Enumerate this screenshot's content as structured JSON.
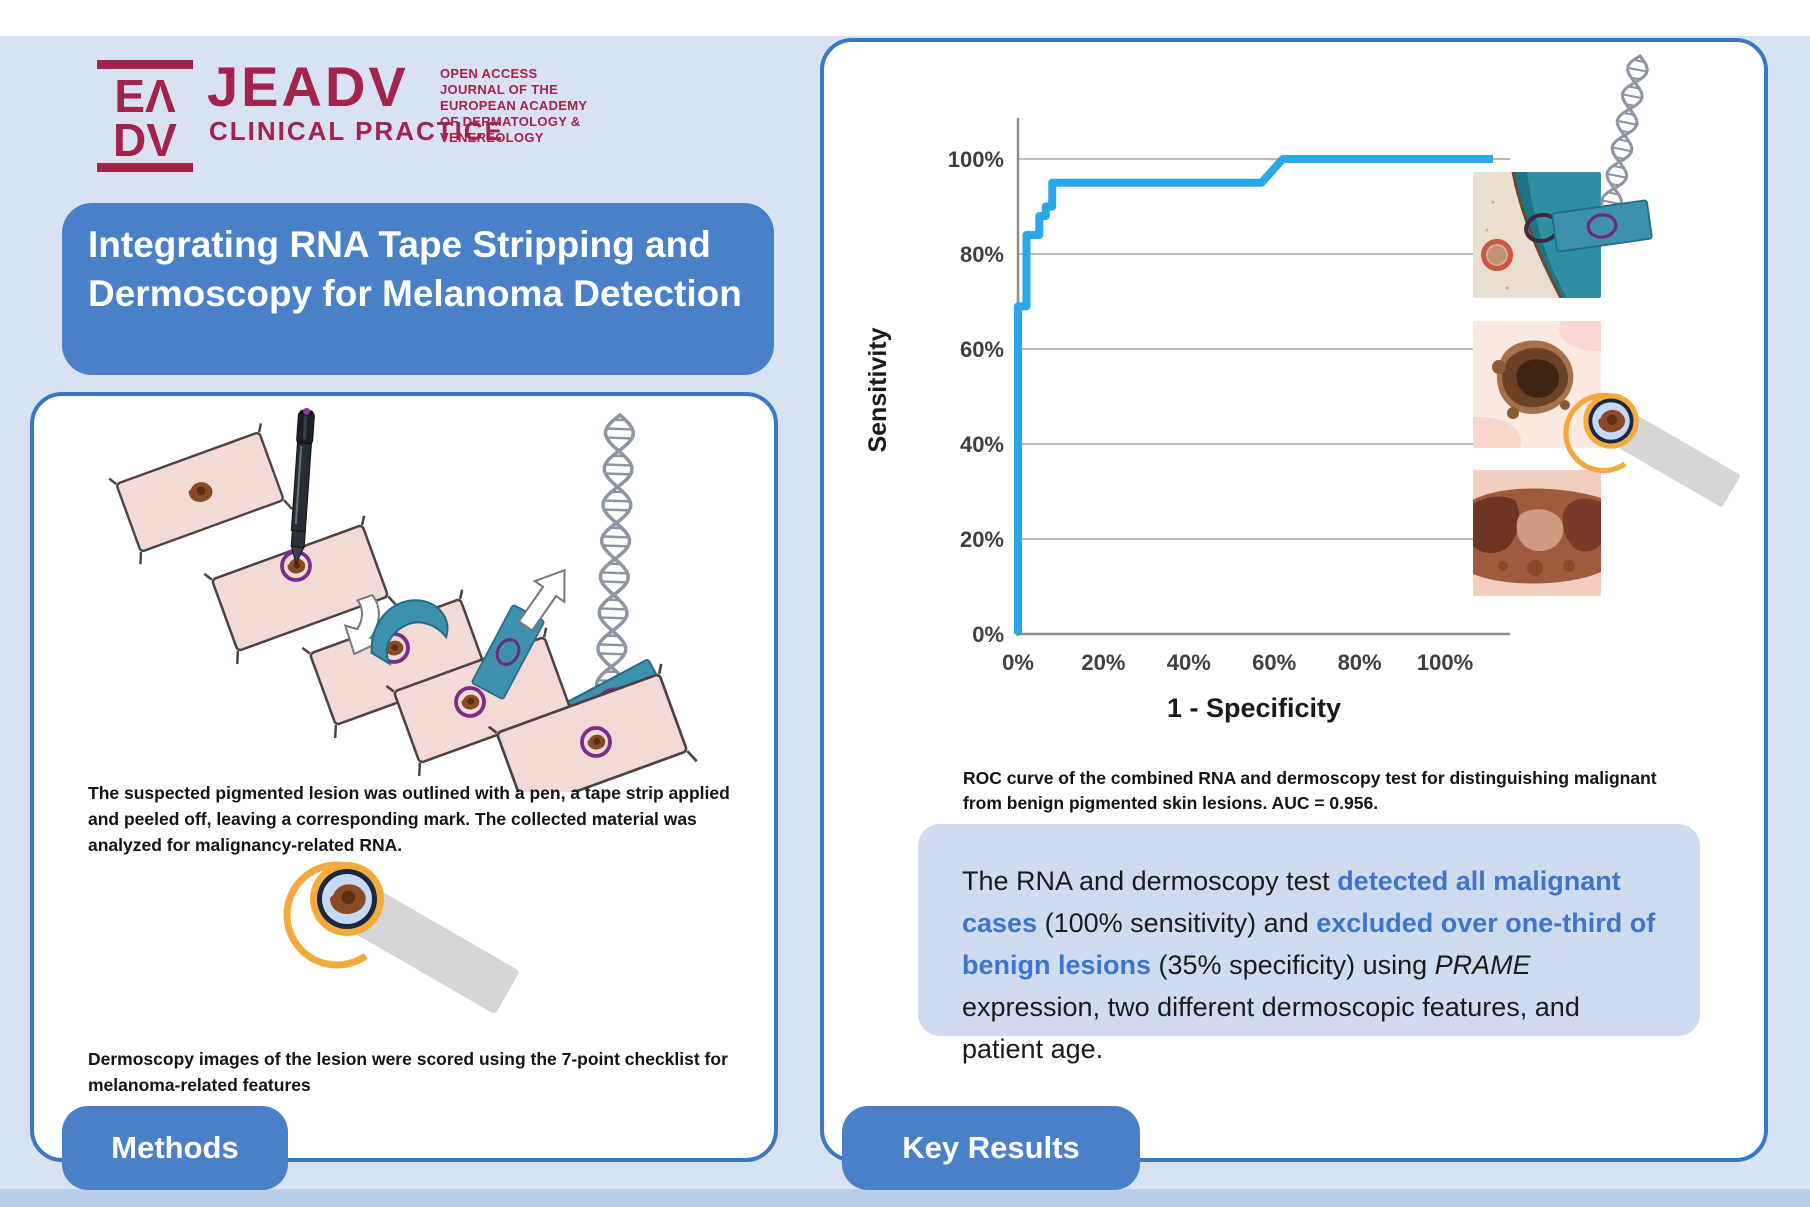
{
  "page": {
    "background": "#d8e2f2",
    "panel_border": "#3a78c4",
    "accent_blue": "#4a80c8",
    "brand_color": "#a2234c"
  },
  "header": {
    "logo": {
      "mark_line1": "EΛ",
      "mark_line2": "DV",
      "journal_name": "JEADV",
      "journal_subtitle": "CLINICAL PRACTICE",
      "tagline": "OPEN ACCESS\nJOURNAL OF THE\nEUROPEAN ACADEMY\nOF DERMATOLOGY &\nVENEREOLOGY"
    },
    "title": "Integrating RNA Tape Stripping and Dermoscopy for Melanoma Detection"
  },
  "methods_panel": {
    "label": "Methods",
    "caption1": "The suspected pigmented lesion was outlined with a pen, a tape strip applied and peeled off, leaving a corresponding mark. The collected material was analyzed for malignancy-related RNA.",
    "caption2": "Dermoscopy images of the lesion were scored using the 7-point checklist for melanoma-related features"
  },
  "results_panel": {
    "label": "Key Results",
    "figure_caption": "ROC curve of the combined RNA and dermoscopy test for distinguishing malignant from benign pigmented skin lesions. AUC = 0.956.",
    "summary_segments": [
      {
        "text": "The RNA and dermoscopy test ",
        "style": "normal"
      },
      {
        "text": "detected all malignant cases",
        "style": "blue"
      },
      {
        "text": " (100% sensitivity) and ",
        "style": "normal"
      },
      {
        "text": "excluded over one-third of benign lesions",
        "style": "blue"
      },
      {
        "text": " (35% specificity) using ",
        "style": "normal"
      },
      {
        "text": "PRAME",
        "style": "italic"
      },
      {
        "text": " expression, two different dermoscopic features, and patient age.",
        "style": "normal"
      }
    ]
  },
  "chart_data": {
    "type": "line",
    "title": "ROC curve of combined RNA and dermoscopy test",
    "xlabel": "1 - Specificity",
    "ylabel": "Sensitivity",
    "x_ticks": [
      "0%",
      "20%",
      "40%",
      "60%",
      "80%",
      "100%"
    ],
    "y_ticks": [
      "0%",
      "20%",
      "40%",
      "60%",
      "80%",
      "100%"
    ],
    "xlim": [
      0,
      100
    ],
    "ylim": [
      0,
      100
    ],
    "grid": "horizontal",
    "legend": "none",
    "line_color": "#2aa7e8",
    "auc": 0.956,
    "series": [
      {
        "name": "ROC curve (RNA + dermoscopy test)",
        "x": [
          0,
          0,
          2,
          2,
          5,
          5,
          6.5,
          6.5,
          8,
          8,
          57,
          62,
          100
        ],
        "y": [
          0,
          69,
          69,
          84,
          84,
          88,
          88,
          90,
          90,
          95,
          95,
          100,
          100
        ]
      }
    ]
  }
}
